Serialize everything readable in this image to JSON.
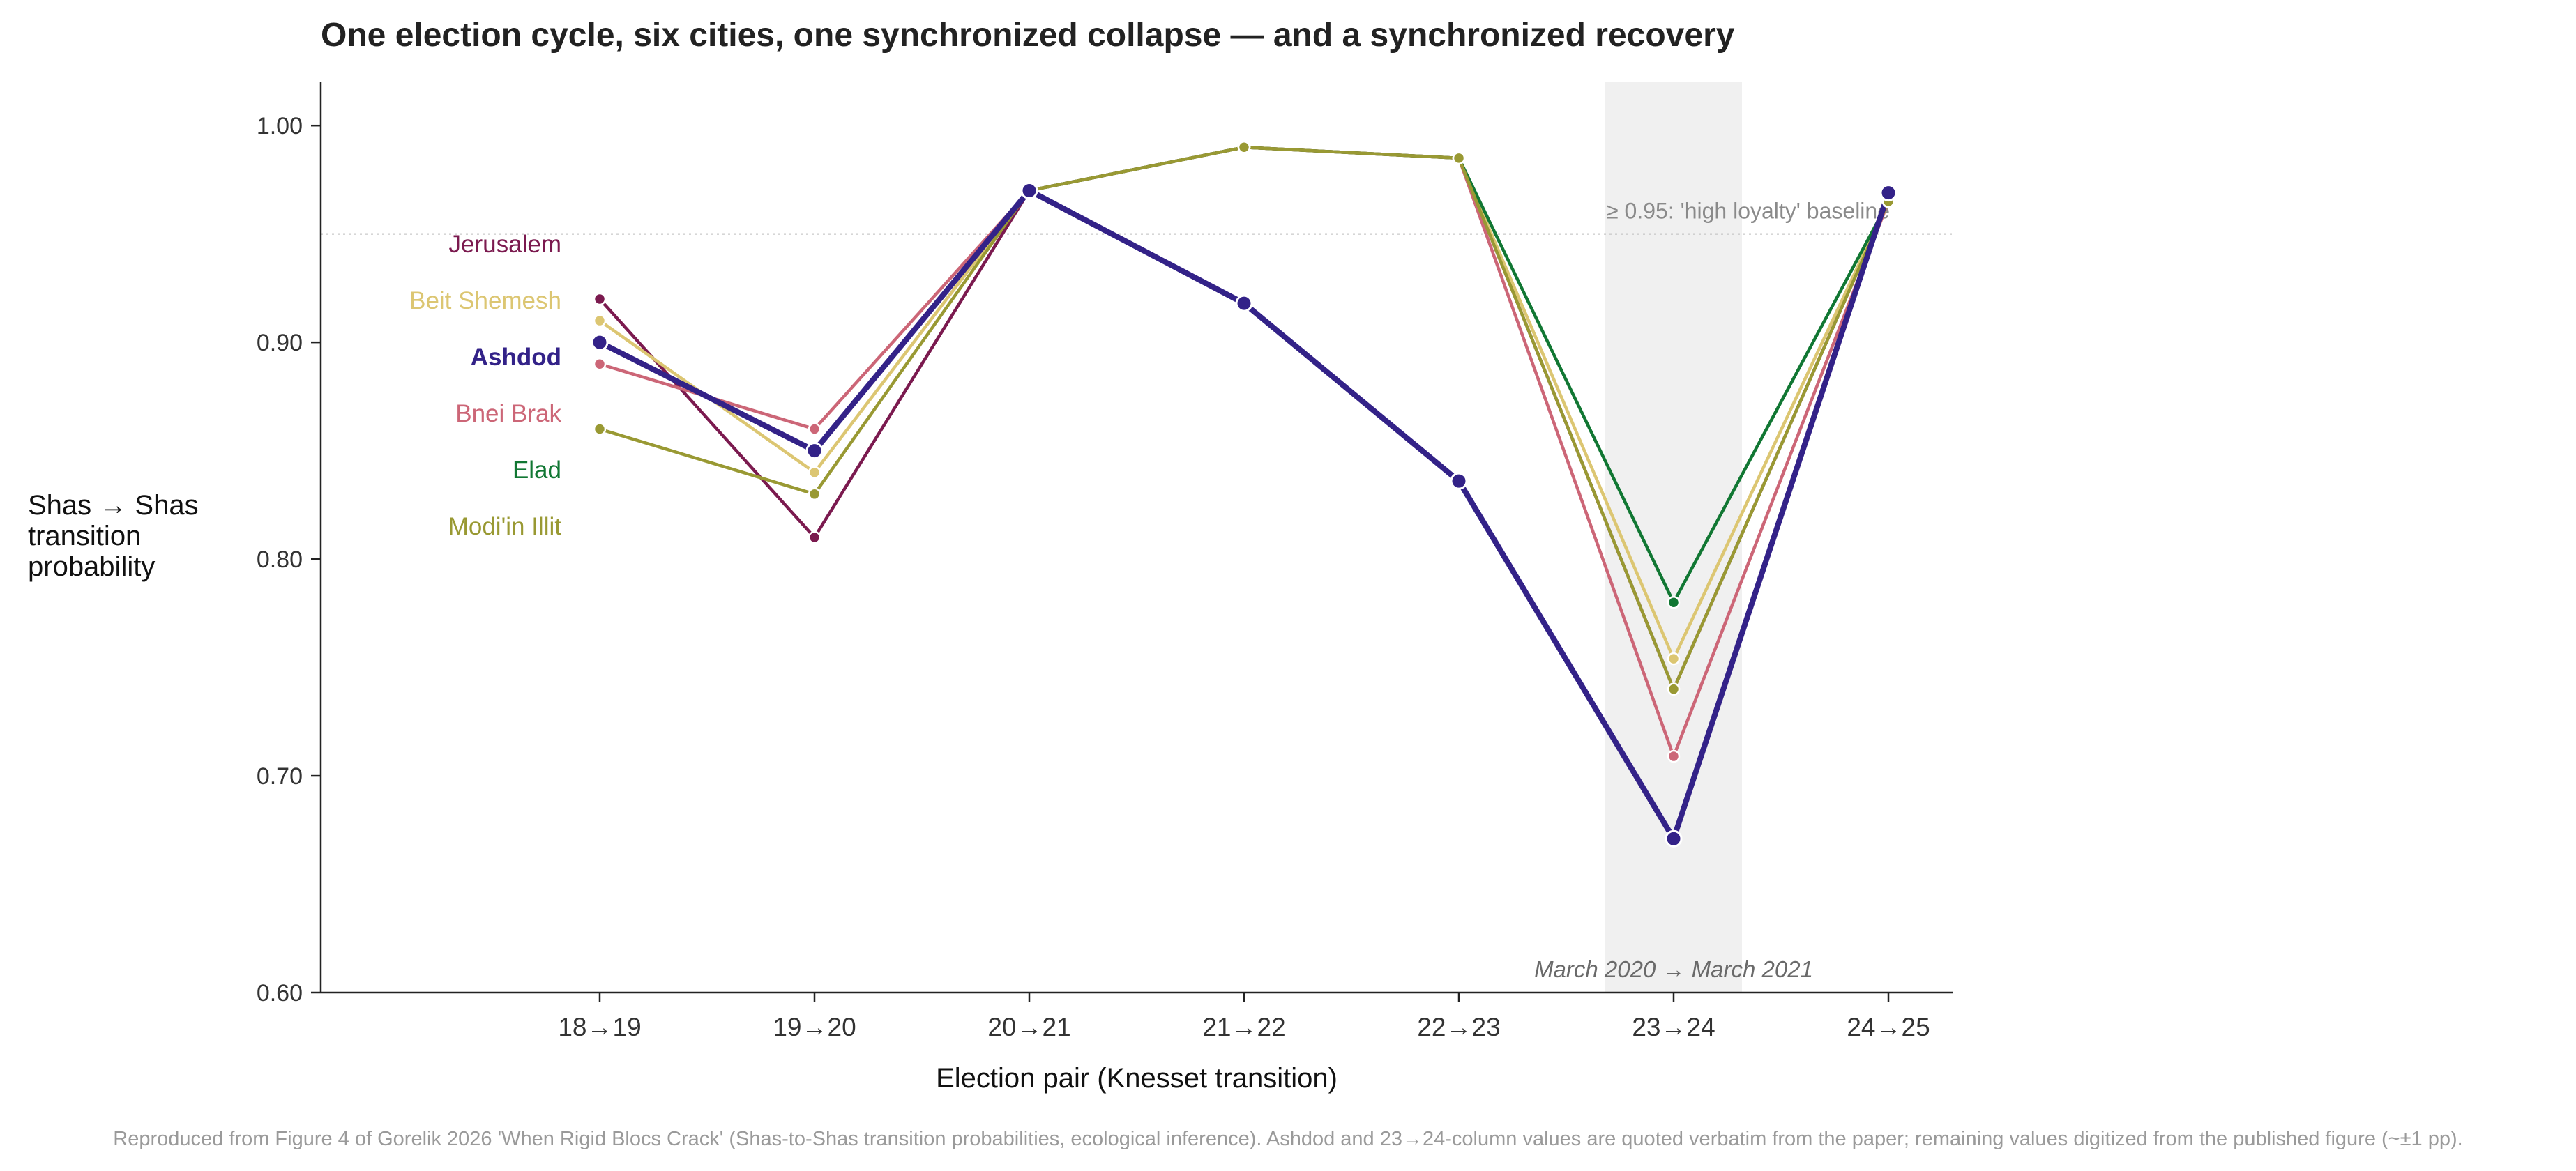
{
  "chart_data": {
    "type": "line",
    "title": "One election cycle, six cities, one synchronized collapse — and a synchronized recovery",
    "xlabel": "Election pair (Knesset transition)",
    "ylabel_lines": [
      "Shas → Shas",
      "transition",
      "probability"
    ],
    "categories": [
      "18→19",
      "19→20",
      "20→21",
      "21→22",
      "22→23",
      "23→24",
      "24→25"
    ],
    "ylim": [
      0.6,
      1.02
    ],
    "yticks": [
      0.6,
      0.7,
      0.8,
      0.9,
      1.0
    ],
    "ytick_labels": [
      "0.60",
      "0.70",
      "0.80",
      "0.90",
      "1.00"
    ],
    "series": [
      {
        "name": "Jerusalem",
        "color": "#7b1a4f",
        "bold": false,
        "values": [
          0.92,
          0.81,
          0.97,
          0.99,
          0.985,
          0.74,
          0.965
        ]
      },
      {
        "name": "Beit Shemesh",
        "color": "#dcc672",
        "bold": false,
        "values": [
          0.91,
          0.84,
          0.97,
          0.99,
          0.985,
          0.754,
          0.965
        ]
      },
      {
        "name": "Bnei Brak",
        "color": "#cc6677",
        "bold": false,
        "values": [
          0.89,
          0.86,
          0.97,
          0.99,
          0.985,
          0.709,
          0.965
        ]
      },
      {
        "name": "Elad",
        "color": "#117733",
        "bold": false,
        "values": [
          null,
          null,
          0.97,
          0.99,
          0.985,
          0.78,
          0.965
        ]
      },
      {
        "name": "Modi'in Illit",
        "color": "#999933",
        "bold": false,
        "values": [
          0.86,
          0.83,
          0.97,
          0.99,
          0.985,
          0.74,
          0.965
        ]
      },
      {
        "name": "Ashdod",
        "color": "#332288",
        "bold": true,
        "values": [
          0.9,
          0.85,
          0.97,
          0.918,
          0.836,
          0.671,
          0.969
        ]
      }
    ],
    "label_order": [
      "Jerusalem",
      "Beit Shemesh",
      "Ashdod",
      "Bnei Brak",
      "Elad",
      "Modi'in Illit"
    ],
    "baseline": {
      "value": 0.95,
      "label": "≥ 0.95: 'high loyalty' baseline"
    },
    "highlight": {
      "category": "23→24",
      "label": "March 2020 → March 2021"
    },
    "grid": false,
    "caption": "Reproduced from Figure 4 of Gorelik 2026 'When Rigid Blocs Crack' (Shas-to-Shas transition probabilities, ecological inference). Ashdod and 23→24-column values are quoted verbatim from the paper; remaining values digitized from the published figure (~±1 pp)."
  }
}
